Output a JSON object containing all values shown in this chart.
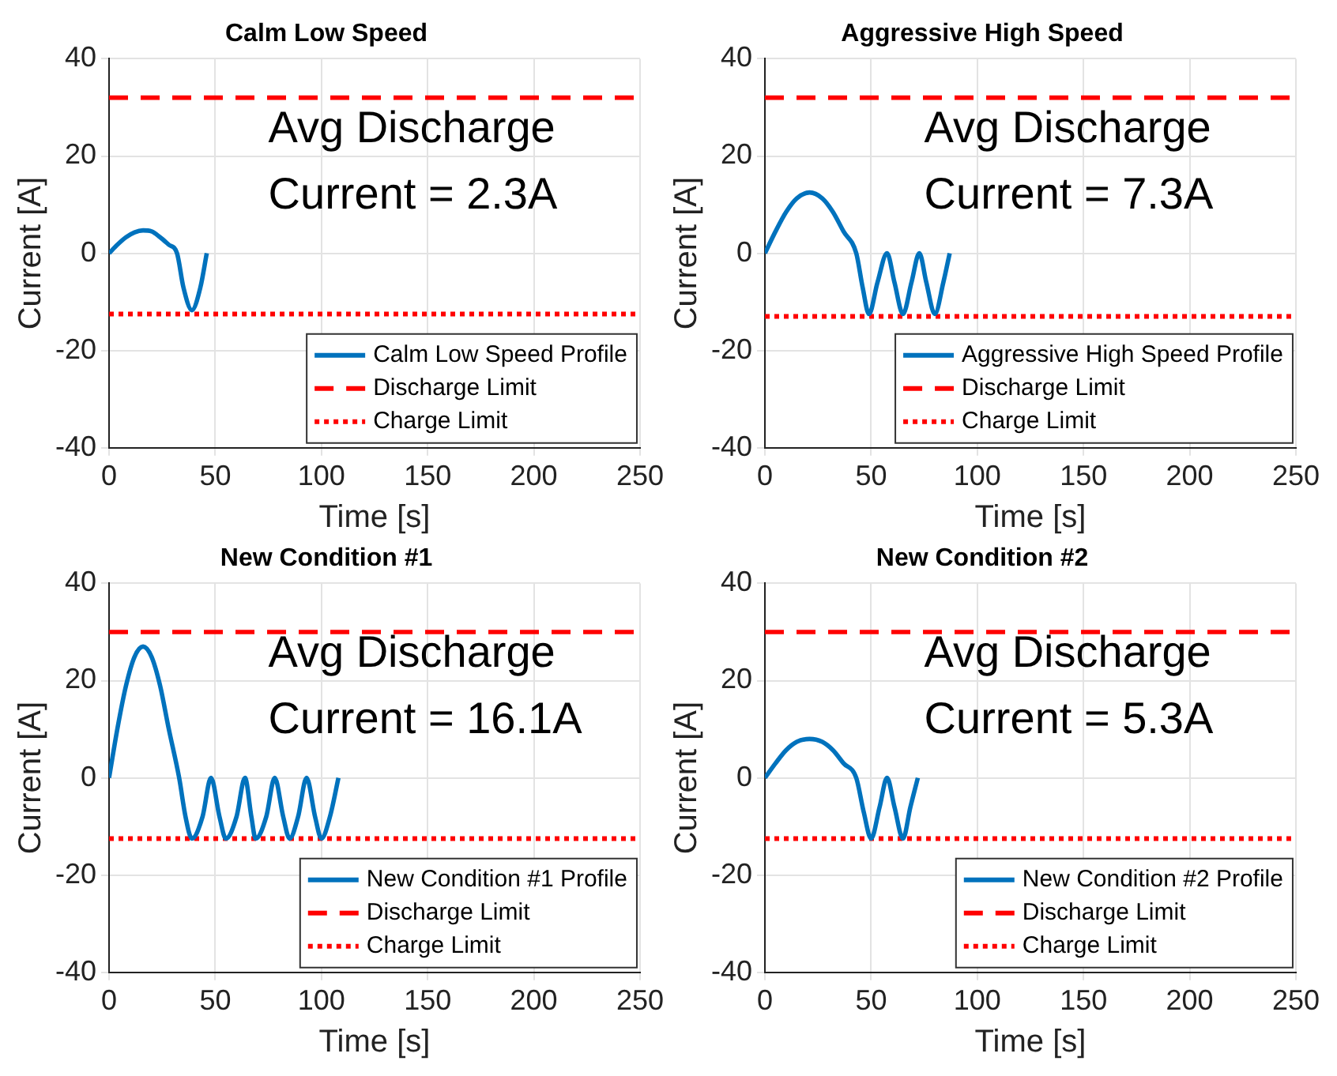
{
  "chart_data": [
    {
      "type": "line",
      "title": "Calm Low Speed",
      "xlabel": "Time [s]",
      "ylabel": "Current [A]",
      "xlim": [
        0,
        250
      ],
      "xticks": [
        0,
        50,
        100,
        150,
        200,
        250
      ],
      "ylim": [
        -40,
        40
      ],
      "yticks": [
        -40,
        -20,
        0,
        20,
        40
      ],
      "grid": true,
      "legend": "bottom right",
      "annotations": [
        "Avg Discharge\nCurrent = 2.3A"
      ],
      "series": [
        {
          "name": "Calm Low Speed Profile",
          "color": "#0072bd",
          "line_style": "solid",
          "x": [
            0,
            4,
            8,
            12,
            16,
            20,
            24,
            28,
            32,
            35,
            39,
            43,
            46
          ],
          "values": [
            0,
            1.8,
            3.3,
            4.3,
            4.7,
            4.5,
            3.3,
            1.8,
            0,
            -7,
            -11.7,
            -7,
            0
          ]
        },
        {
          "name": "Discharge Limit",
          "color": "#ff0000",
          "line_style": "dashed",
          "x": [
            0,
            250
          ],
          "values": [
            32,
            32
          ]
        },
        {
          "name": "Charge Limit",
          "color": "#ff0000",
          "line_style": "dotted",
          "x": [
            0,
            250
          ],
          "values": [
            -12.5,
            -12.5
          ]
        }
      ]
    },
    {
      "type": "line",
      "title": "Aggressive High Speed",
      "xlabel": "Time [s]",
      "ylabel": "Current [A]",
      "xlim": [
        0,
        250
      ],
      "xticks": [
        0,
        50,
        100,
        150,
        200,
        250
      ],
      "ylim": [
        -40,
        40
      ],
      "yticks": [
        -40,
        -20,
        0,
        20,
        40
      ],
      "grid": true,
      "legend": "bottom right",
      "annotations": [
        "Avg Discharge\nCurrent = 7.3A"
      ],
      "series": [
        {
          "name": "Aggressive High Speed Profile",
          "color": "#0072bd",
          "line_style": "solid",
          "x": [
            0,
            5,
            10,
            15,
            21,
            27,
            32,
            37,
            43,
            46,
            49,
            53,
            57.5,
            61,
            65,
            69,
            72.7,
            76,
            80,
            84,
            87
          ],
          "values": [
            0,
            4.5,
            8.5,
            11.3,
            12.5,
            11.3,
            8.5,
            4.5,
            0,
            -7,
            -12.5,
            -6,
            0,
            -6,
            -12.5,
            -6,
            0,
            -6,
            -12.5,
            -6,
            0
          ]
        },
        {
          "name": "Discharge Limit",
          "color": "#ff0000",
          "line_style": "dashed",
          "x": [
            0,
            250
          ],
          "values": [
            32,
            32
          ]
        },
        {
          "name": "Charge Limit",
          "color": "#ff0000",
          "line_style": "dotted",
          "x": [
            0,
            250
          ],
          "values": [
            -13,
            -13
          ]
        }
      ]
    },
    {
      "type": "line",
      "title": "New Condition #1",
      "xlabel": "Time [s]",
      "ylabel": "Current [A]",
      "xlim": [
        0,
        250
      ],
      "xticks": [
        0,
        50,
        100,
        150,
        200,
        250
      ],
      "ylim": [
        -40,
        40
      ],
      "yticks": [
        -40,
        -20,
        0,
        20,
        40
      ],
      "grid": true,
      "legend": "bottom right",
      "annotations": [
        "Avg Discharge\nCurrent = 16.1A"
      ],
      "series": [
        {
          "name": "New Condition #1 Profile",
          "color": "#0072bd",
          "line_style": "solid",
          "x": [
            0,
            4,
            8,
            12,
            16,
            20,
            24,
            28,
            33,
            36,
            39,
            44,
            48,
            52,
            55,
            60,
            64,
            67,
            69,
            74,
            78,
            82,
            85,
            89,
            93,
            97,
            100,
            104,
            108
          ],
          "values": [
            0,
            10.3,
            19,
            24.9,
            27,
            24.9,
            19,
            10.3,
            0,
            -8,
            -12.5,
            -8,
            0,
            -8,
            -12.5,
            -8,
            0,
            -8,
            -12.5,
            -8,
            0,
            -8,
            -12.5,
            -8,
            0,
            -8,
            -12.5,
            -8,
            0
          ]
        },
        {
          "name": "Discharge Limit",
          "color": "#ff0000",
          "line_style": "dashed",
          "x": [
            0,
            250
          ],
          "values": [
            30,
            30
          ]
        },
        {
          "name": "Charge Limit",
          "color": "#ff0000",
          "line_style": "dotted",
          "x": [
            0,
            250
          ],
          "values": [
            -12.5,
            -12.5
          ]
        }
      ]
    },
    {
      "type": "line",
      "title": "New Condition #2",
      "xlabel": "Time [s]",
      "ylabel": "Current [A]",
      "xlim": [
        0,
        250
      ],
      "xticks": [
        0,
        50,
        100,
        150,
        200,
        250
      ],
      "ylim": [
        -40,
        40
      ],
      "yticks": [
        -40,
        -20,
        0,
        20,
        40
      ],
      "grid": true,
      "legend": "bottom right",
      "annotations": [
        "Avg Discharge\nCurrent = 5.3A"
      ],
      "series": [
        {
          "name": "New Condition #2 Profile",
          "color": "#0072bd",
          "line_style": "solid",
          "x": [
            0,
            5,
            10,
            15,
            21,
            27,
            32,
            37,
            43,
            46.5,
            50,
            54,
            57.5,
            61,
            65,
            68.5,
            72
          ],
          "values": [
            0,
            3,
            5.7,
            7.4,
            8,
            7.4,
            5.7,
            3,
            0,
            -7,
            -12.5,
            -6,
            0,
            -6,
            -12.5,
            -6,
            0
          ]
        },
        {
          "name": "Discharge Limit",
          "color": "#ff0000",
          "line_style": "dashed",
          "x": [
            0,
            250
          ],
          "values": [
            30,
            30
          ]
        },
        {
          "name": "Charge Limit",
          "color": "#ff0000",
          "line_style": "dotted",
          "x": [
            0,
            250
          ],
          "values": [
            -12.5,
            -12.5
          ]
        }
      ]
    }
  ]
}
